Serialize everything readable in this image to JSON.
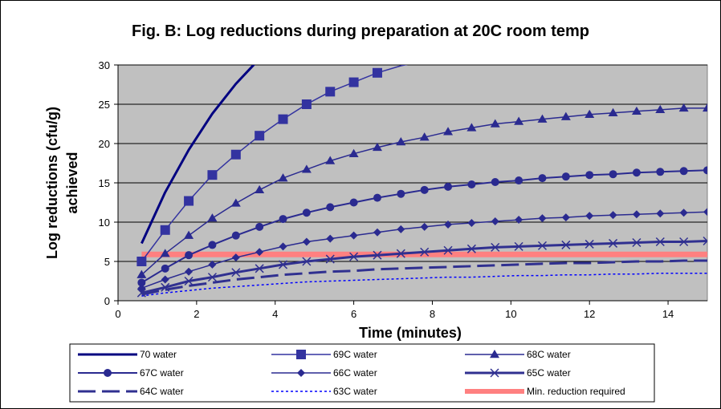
{
  "chart_data": {
    "type": "line",
    "title": "Fig. B: Log reductions during preparation at 20C room temp",
    "xlabel": "Time (minutes)",
    "ylabel": [
      "Log reductions (cfu/g)",
      "achieved"
    ],
    "xlim": [
      0,
      15
    ],
    "ylim": [
      0,
      30
    ],
    "xticks": [
      0,
      2,
      4,
      6,
      8,
      10,
      12,
      14
    ],
    "yticks": [
      0,
      5,
      10,
      15,
      20,
      25,
      30
    ],
    "grid": "horizontal",
    "plot_background": "#c0c0c0",
    "legend_position": "bottom",
    "series": [
      {
        "name": "70 water",
        "color": "#000080",
        "style": "solid",
        "width": 3,
        "marker": "none",
        "x": [
          0.6,
          1.2,
          1.8,
          2.4,
          3.0,
          3.6
        ],
        "y": [
          7.3,
          13.8,
          19.2,
          23.8,
          27.6,
          30.8
        ]
      },
      {
        "name": "69C water",
        "color": "#3333a0",
        "style": "solid",
        "width": 1.5,
        "marker": "square",
        "x": [
          0.6,
          1.2,
          1.8,
          2.4,
          3.0,
          3.6,
          4.2,
          4.8,
          5.4,
          6.0,
          6.6,
          7.2,
          7.8,
          8.0
        ],
        "y": [
          5.0,
          9.0,
          12.7,
          16.0,
          18.6,
          21.0,
          23.1,
          25.0,
          26.6,
          27.8,
          29.0,
          29.9,
          30.5,
          30.6
        ],
        "marker_count": 11
      },
      {
        "name": "68C water",
        "color": "#2a2a90",
        "style": "solid",
        "width": 1.5,
        "marker": "triangle",
        "x": [
          0.6,
          1.2,
          1.8,
          2.4,
          3.0,
          3.6,
          4.2,
          4.8,
          5.4,
          6.0,
          6.6,
          7.2,
          7.8,
          8.4,
          9.0,
          9.6,
          10.2,
          10.8,
          11.4,
          12.0,
          12.6,
          13.2,
          13.8,
          14.4,
          15.0
        ],
        "y": [
          3.3,
          6.0,
          8.3,
          10.5,
          12.4,
          14.1,
          15.6,
          16.7,
          17.8,
          18.7,
          19.5,
          20.2,
          20.8,
          21.5,
          22.0,
          22.5,
          22.8,
          23.1,
          23.4,
          23.7,
          23.9,
          24.1,
          24.3,
          24.5,
          24.5
        ]
      },
      {
        "name": "67C water",
        "color": "#2a2a90",
        "style": "solid",
        "width": 2,
        "marker": "circle",
        "x": [
          0.6,
          1.2,
          1.8,
          2.4,
          3.0,
          3.6,
          4.2,
          4.8,
          5.4,
          6.0,
          6.6,
          7.2,
          7.8,
          8.4,
          9.0,
          9.6,
          10.2,
          10.8,
          11.4,
          12.0,
          12.6,
          13.2,
          13.8,
          14.4,
          15.0
        ],
        "y": [
          2.3,
          4.1,
          5.8,
          7.1,
          8.3,
          9.4,
          10.4,
          11.2,
          11.9,
          12.5,
          13.1,
          13.6,
          14.1,
          14.5,
          14.8,
          15.1,
          15.3,
          15.6,
          15.8,
          16.0,
          16.1,
          16.3,
          16.4,
          16.5,
          16.6
        ]
      },
      {
        "name": "66C water",
        "color": "#2a2a90",
        "style": "solid",
        "width": 1.5,
        "marker": "diamond",
        "x": [
          0.6,
          1.2,
          1.8,
          2.4,
          3.0,
          3.6,
          4.2,
          4.8,
          5.4,
          6.0,
          6.6,
          7.2,
          7.8,
          8.4,
          9.0,
          9.6,
          10.2,
          10.8,
          11.4,
          12.0,
          12.6,
          13.2,
          13.8,
          14.4,
          15.0
        ],
        "y": [
          1.6,
          2.7,
          3.7,
          4.6,
          5.5,
          6.2,
          6.9,
          7.5,
          7.9,
          8.3,
          8.7,
          9.1,
          9.4,
          9.7,
          9.9,
          10.1,
          10.3,
          10.5,
          10.6,
          10.8,
          10.9,
          11.0,
          11.1,
          11.2,
          11.3
        ]
      },
      {
        "name": "65C water",
        "color": "#303090",
        "style": "solid",
        "width": 3,
        "marker": "x",
        "x": [
          0.6,
          1.2,
          1.8,
          2.4,
          3.0,
          3.6,
          4.2,
          4.8,
          5.4,
          6.0,
          6.6,
          7.2,
          7.8,
          8.4,
          9.0,
          9.6,
          10.2,
          10.8,
          11.4,
          12.0,
          12.6,
          13.2,
          13.8,
          14.4,
          15.0
        ],
        "y": [
          1.0,
          1.7,
          2.5,
          3.0,
          3.6,
          4.1,
          4.6,
          5.0,
          5.3,
          5.6,
          5.8,
          6.0,
          6.2,
          6.4,
          6.6,
          6.8,
          6.9,
          7.0,
          7.1,
          7.2,
          7.3,
          7.4,
          7.5,
          7.5,
          7.6
        ]
      },
      {
        "name": "64C water",
        "color": "#303090",
        "style": "longdash",
        "width": 3,
        "marker": "none",
        "x": [
          0.6,
          1.2,
          1.8,
          2.4,
          3.0,
          3.6,
          4.2,
          4.8,
          5.4,
          6.0,
          6.6,
          7.2,
          7.8,
          8.4,
          9.0,
          9.6,
          10.2,
          10.8,
          11.4,
          12.0,
          12.6,
          13.2,
          13.8,
          14.4,
          15.0
        ],
        "y": [
          0.8,
          1.4,
          1.9,
          2.3,
          2.7,
          3.0,
          3.3,
          3.5,
          3.7,
          3.8,
          4.0,
          4.1,
          4.2,
          4.3,
          4.4,
          4.5,
          4.6,
          4.7,
          4.8,
          4.8,
          4.9,
          5.0,
          5.0,
          5.1,
          5.1
        ]
      },
      {
        "name": "63C water",
        "color": "#0000ff",
        "style": "dotted",
        "width": 1.5,
        "marker": "none",
        "x": [
          0.6,
          1.2,
          1.8,
          2.4,
          3.0,
          3.6,
          4.2,
          4.8,
          5.4,
          6.0,
          6.6,
          7.2,
          7.8,
          8.4,
          9.0,
          9.6,
          10.2,
          10.8,
          11.4,
          12.0,
          12.6,
          13.2,
          13.8,
          14.4,
          15.0
        ],
        "y": [
          0.6,
          1.0,
          1.3,
          1.6,
          1.8,
          2.0,
          2.2,
          2.4,
          2.5,
          2.6,
          2.7,
          2.8,
          2.9,
          3.0,
          3.0,
          3.1,
          3.2,
          3.2,
          3.3,
          3.3,
          3.4,
          3.4,
          3.5,
          3.5,
          3.5
        ]
      },
      {
        "name": "Min. reduction required",
        "color": "#ff8080",
        "style": "solid",
        "width": 7,
        "marker": "none",
        "x": [
          0.6,
          15.0
        ],
        "y": [
          5.9,
          5.9
        ]
      }
    ]
  }
}
